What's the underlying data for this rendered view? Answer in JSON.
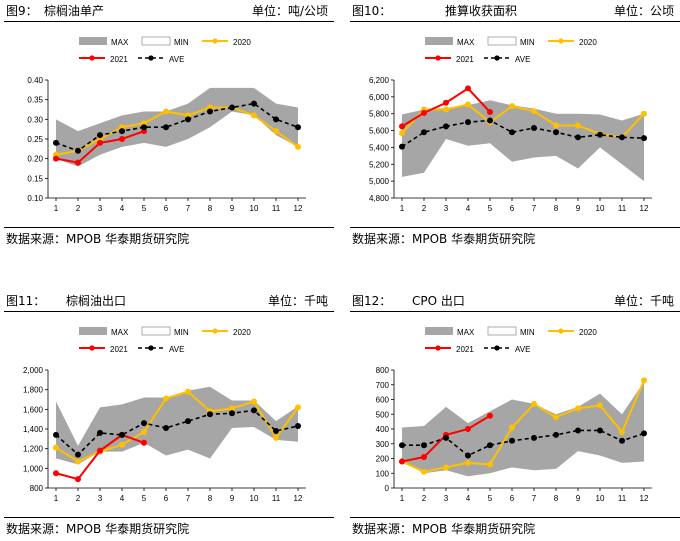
{
  "source_text": "数据来源：MPOB  华泰期货研究院",
  "legend": {
    "max": "MAX",
    "min": "MIN",
    "y2020": "2020",
    "y2021": "2021",
    "ave": "AVE"
  },
  "colors": {
    "band": "#a6a6a6",
    "y2020": "#ffc000",
    "y2021": "#ff0000",
    "ave": "#000000"
  },
  "chart_data": [
    {
      "figure": "图9：",
      "title": "棕榈油单产",
      "unit": "单位：吨/公顷",
      "type": "line",
      "x": [
        1,
        2,
        3,
        4,
        5,
        6,
        7,
        8,
        9,
        10,
        11,
        12
      ],
      "ylim": [
        0.1,
        0.4
      ],
      "yticks": [
        "0.10",
        "0.15",
        "0.20",
        "0.25",
        "0.30",
        "0.35",
        "0.40"
      ],
      "max": [
        0.3,
        0.27,
        0.29,
        0.31,
        0.32,
        0.32,
        0.34,
        0.38,
        0.38,
        0.38,
        0.34,
        0.33
      ],
      "min": [
        0.2,
        0.18,
        0.21,
        0.23,
        0.24,
        0.23,
        0.25,
        0.28,
        0.32,
        0.31,
        0.26,
        0.23
      ],
      "series": [
        {
          "name": "2020",
          "values": [
            0.21,
            0.22,
            0.25,
            0.28,
            0.29,
            0.32,
            0.31,
            0.33,
            0.33,
            0.31,
            0.27,
            0.23
          ]
        },
        {
          "name": "2021",
          "values": [
            0.2,
            0.19,
            0.24,
            0.25,
            0.27,
            null,
            null,
            null,
            null,
            null,
            null,
            null
          ]
        },
        {
          "name": "AVE",
          "values": [
            0.24,
            0.22,
            0.26,
            0.27,
            0.28,
            0.28,
            0.3,
            0.32,
            0.33,
            0.34,
            0.3,
            0.28
          ]
        }
      ]
    },
    {
      "figure": "图10：",
      "title": "推算收获面积",
      "unit": "单位：公顷",
      "type": "line",
      "x": [
        1,
        2,
        3,
        4,
        5,
        6,
        7,
        8,
        9,
        10,
        11,
        12
      ],
      "ylim": [
        4800,
        6200
      ],
      "yticks": [
        "4,800",
        "5,000",
        "5,200",
        "5,400",
        "5,600",
        "5,800",
        "6,000",
        "6,200"
      ],
      "max": [
        5790,
        5850,
        5870,
        5900,
        5960,
        5900,
        5860,
        5800,
        5800,
        5790,
        5720,
        5800
      ],
      "min": [
        5050,
        5100,
        5500,
        5420,
        5450,
        5230,
        5280,
        5300,
        5150,
        5400,
        5200,
        5000
      ],
      "series": [
        {
          "name": "2020",
          "values": [
            5570,
            5850,
            5850,
            5910,
            5700,
            5890,
            5830,
            5660,
            5660,
            5560,
            5520,
            5800
          ]
        },
        {
          "name": "2021",
          "values": [
            5650,
            5810,
            5930,
            6100,
            5820,
            null,
            null,
            null,
            null,
            null,
            null,
            null
          ]
        },
        {
          "name": "AVE",
          "values": [
            5410,
            5580,
            5650,
            5700,
            5720,
            5580,
            5630,
            5580,
            5520,
            5550,
            5520,
            5510
          ]
        }
      ]
    },
    {
      "figure": "图11：",
      "title": "棕榈油出口",
      "unit": "单位：千吨",
      "type": "line",
      "x": [
        1,
        2,
        3,
        4,
        5,
        6,
        7,
        8,
        9,
        10,
        11,
        12
      ],
      "ylim": [
        800,
        2000
      ],
      "yticks": [
        "800",
        "1,000",
        "1,200",
        "1,400",
        "1,600",
        "1,800",
        "2,000"
      ],
      "max": [
        1680,
        1230,
        1620,
        1650,
        1720,
        1720,
        1790,
        1830,
        1690,
        1690,
        1480,
        1630
      ],
      "min": [
        1100,
        1040,
        1170,
        1170,
        1260,
        1130,
        1190,
        1100,
        1410,
        1420,
        1290,
        1270
      ],
      "series": [
        {
          "name": "2020",
          "values": [
            1210,
            1070,
            1170,
            1240,
            1370,
            1710,
            1780,
            1580,
            1610,
            1680,
            1310,
            1620
          ]
        },
        {
          "name": "2021",
          "values": [
            950,
            890,
            1180,
            1340,
            1260,
            null,
            null,
            null,
            null,
            null,
            null,
            null
          ]
        },
        {
          "name": "AVE",
          "values": [
            1340,
            1140,
            1360,
            1340,
            1460,
            1410,
            1480,
            1550,
            1560,
            1590,
            1380,
            1430
          ]
        }
      ]
    },
    {
      "figure": "图12：",
      "title": "CPO 出口",
      "unit": "单位：千吨",
      "type": "line",
      "x": [
        1,
        2,
        3,
        4,
        5,
        6,
        7,
        8,
        9,
        10,
        11,
        12
      ],
      "ylim": [
        0,
        800
      ],
      "yticks": [
        "0",
        "100",
        "200",
        "300",
        "400",
        "500",
        "600",
        "700",
        "800"
      ],
      "max": [
        410,
        420,
        550,
        440,
        520,
        600,
        570,
        500,
        550,
        640,
        500,
        720
      ],
      "min": [
        180,
        100,
        120,
        80,
        100,
        140,
        120,
        130,
        250,
        220,
        170,
        180
      ],
      "series": [
        {
          "name": "2020",
          "values": [
            180,
            110,
            140,
            170,
            160,
            410,
            570,
            480,
            540,
            560,
            380,
            730
          ]
        },
        {
          "name": "2021",
          "values": [
            180,
            210,
            360,
            400,
            490,
            null,
            null,
            null,
            null,
            null,
            null,
            null
          ]
        },
        {
          "name": "AVE",
          "values": [
            290,
            290,
            340,
            220,
            290,
            320,
            340,
            360,
            390,
            390,
            320,
            370
          ]
        }
      ]
    }
  ]
}
